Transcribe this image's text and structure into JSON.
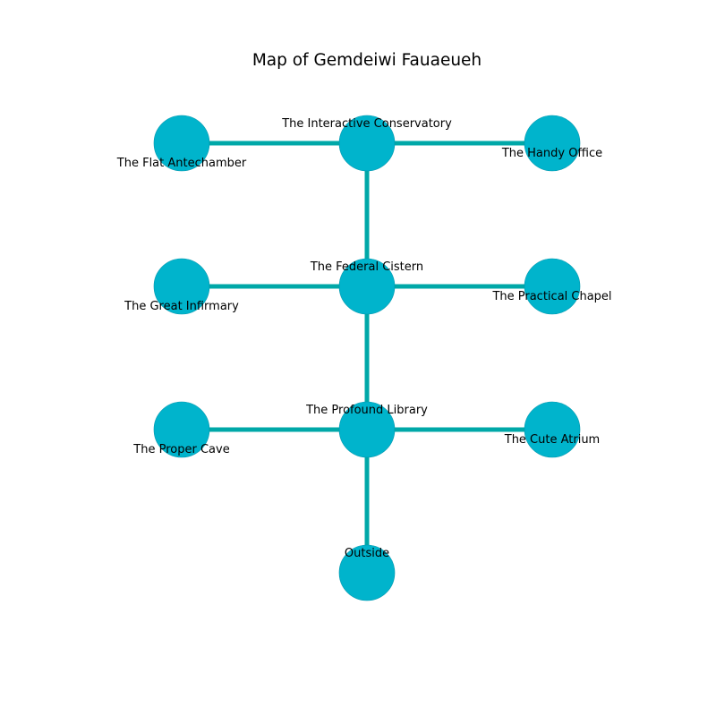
{
  "title": "Map of Gemdeiwi Fauaeueh",
  "colors": {
    "node_fill": "#00b4cc",
    "node_stroke": "#0096ad",
    "edge": "#00a8a8",
    "background": "#ffffff"
  },
  "rooms": [
    {
      "id": "flat-antechamber",
      "label": "The Flat Antechamber"
    },
    {
      "id": "interactive-conservatory",
      "label": "The Interactive Conservatory"
    },
    {
      "id": "handy-office",
      "label": "The Handy Office"
    },
    {
      "id": "great-infirmary",
      "label": "The Great Infirmary"
    },
    {
      "id": "federal-cistern",
      "label": "The Federal Cistern"
    },
    {
      "id": "practical-chapel",
      "label": "The Practical Chapel"
    },
    {
      "id": "proper-cave",
      "label": "The Proper Cave"
    },
    {
      "id": "profound-library",
      "label": "The Profound Library"
    },
    {
      "id": "cute-atrium",
      "label": "The Cute Atrium"
    },
    {
      "id": "outside",
      "label": "Outside"
    }
  ],
  "connections": [
    [
      "flat-antechamber",
      "interactive-conservatory"
    ],
    [
      "interactive-conservatory",
      "handy-office"
    ],
    [
      "interactive-conservatory",
      "federal-cistern"
    ],
    [
      "great-infirmary",
      "federal-cistern"
    ],
    [
      "federal-cistern",
      "practical-chapel"
    ],
    [
      "federal-cistern",
      "profound-library"
    ],
    [
      "proper-cave",
      "profound-library"
    ],
    [
      "profound-library",
      "cute-atrium"
    ],
    [
      "profound-library",
      "outside"
    ]
  ]
}
